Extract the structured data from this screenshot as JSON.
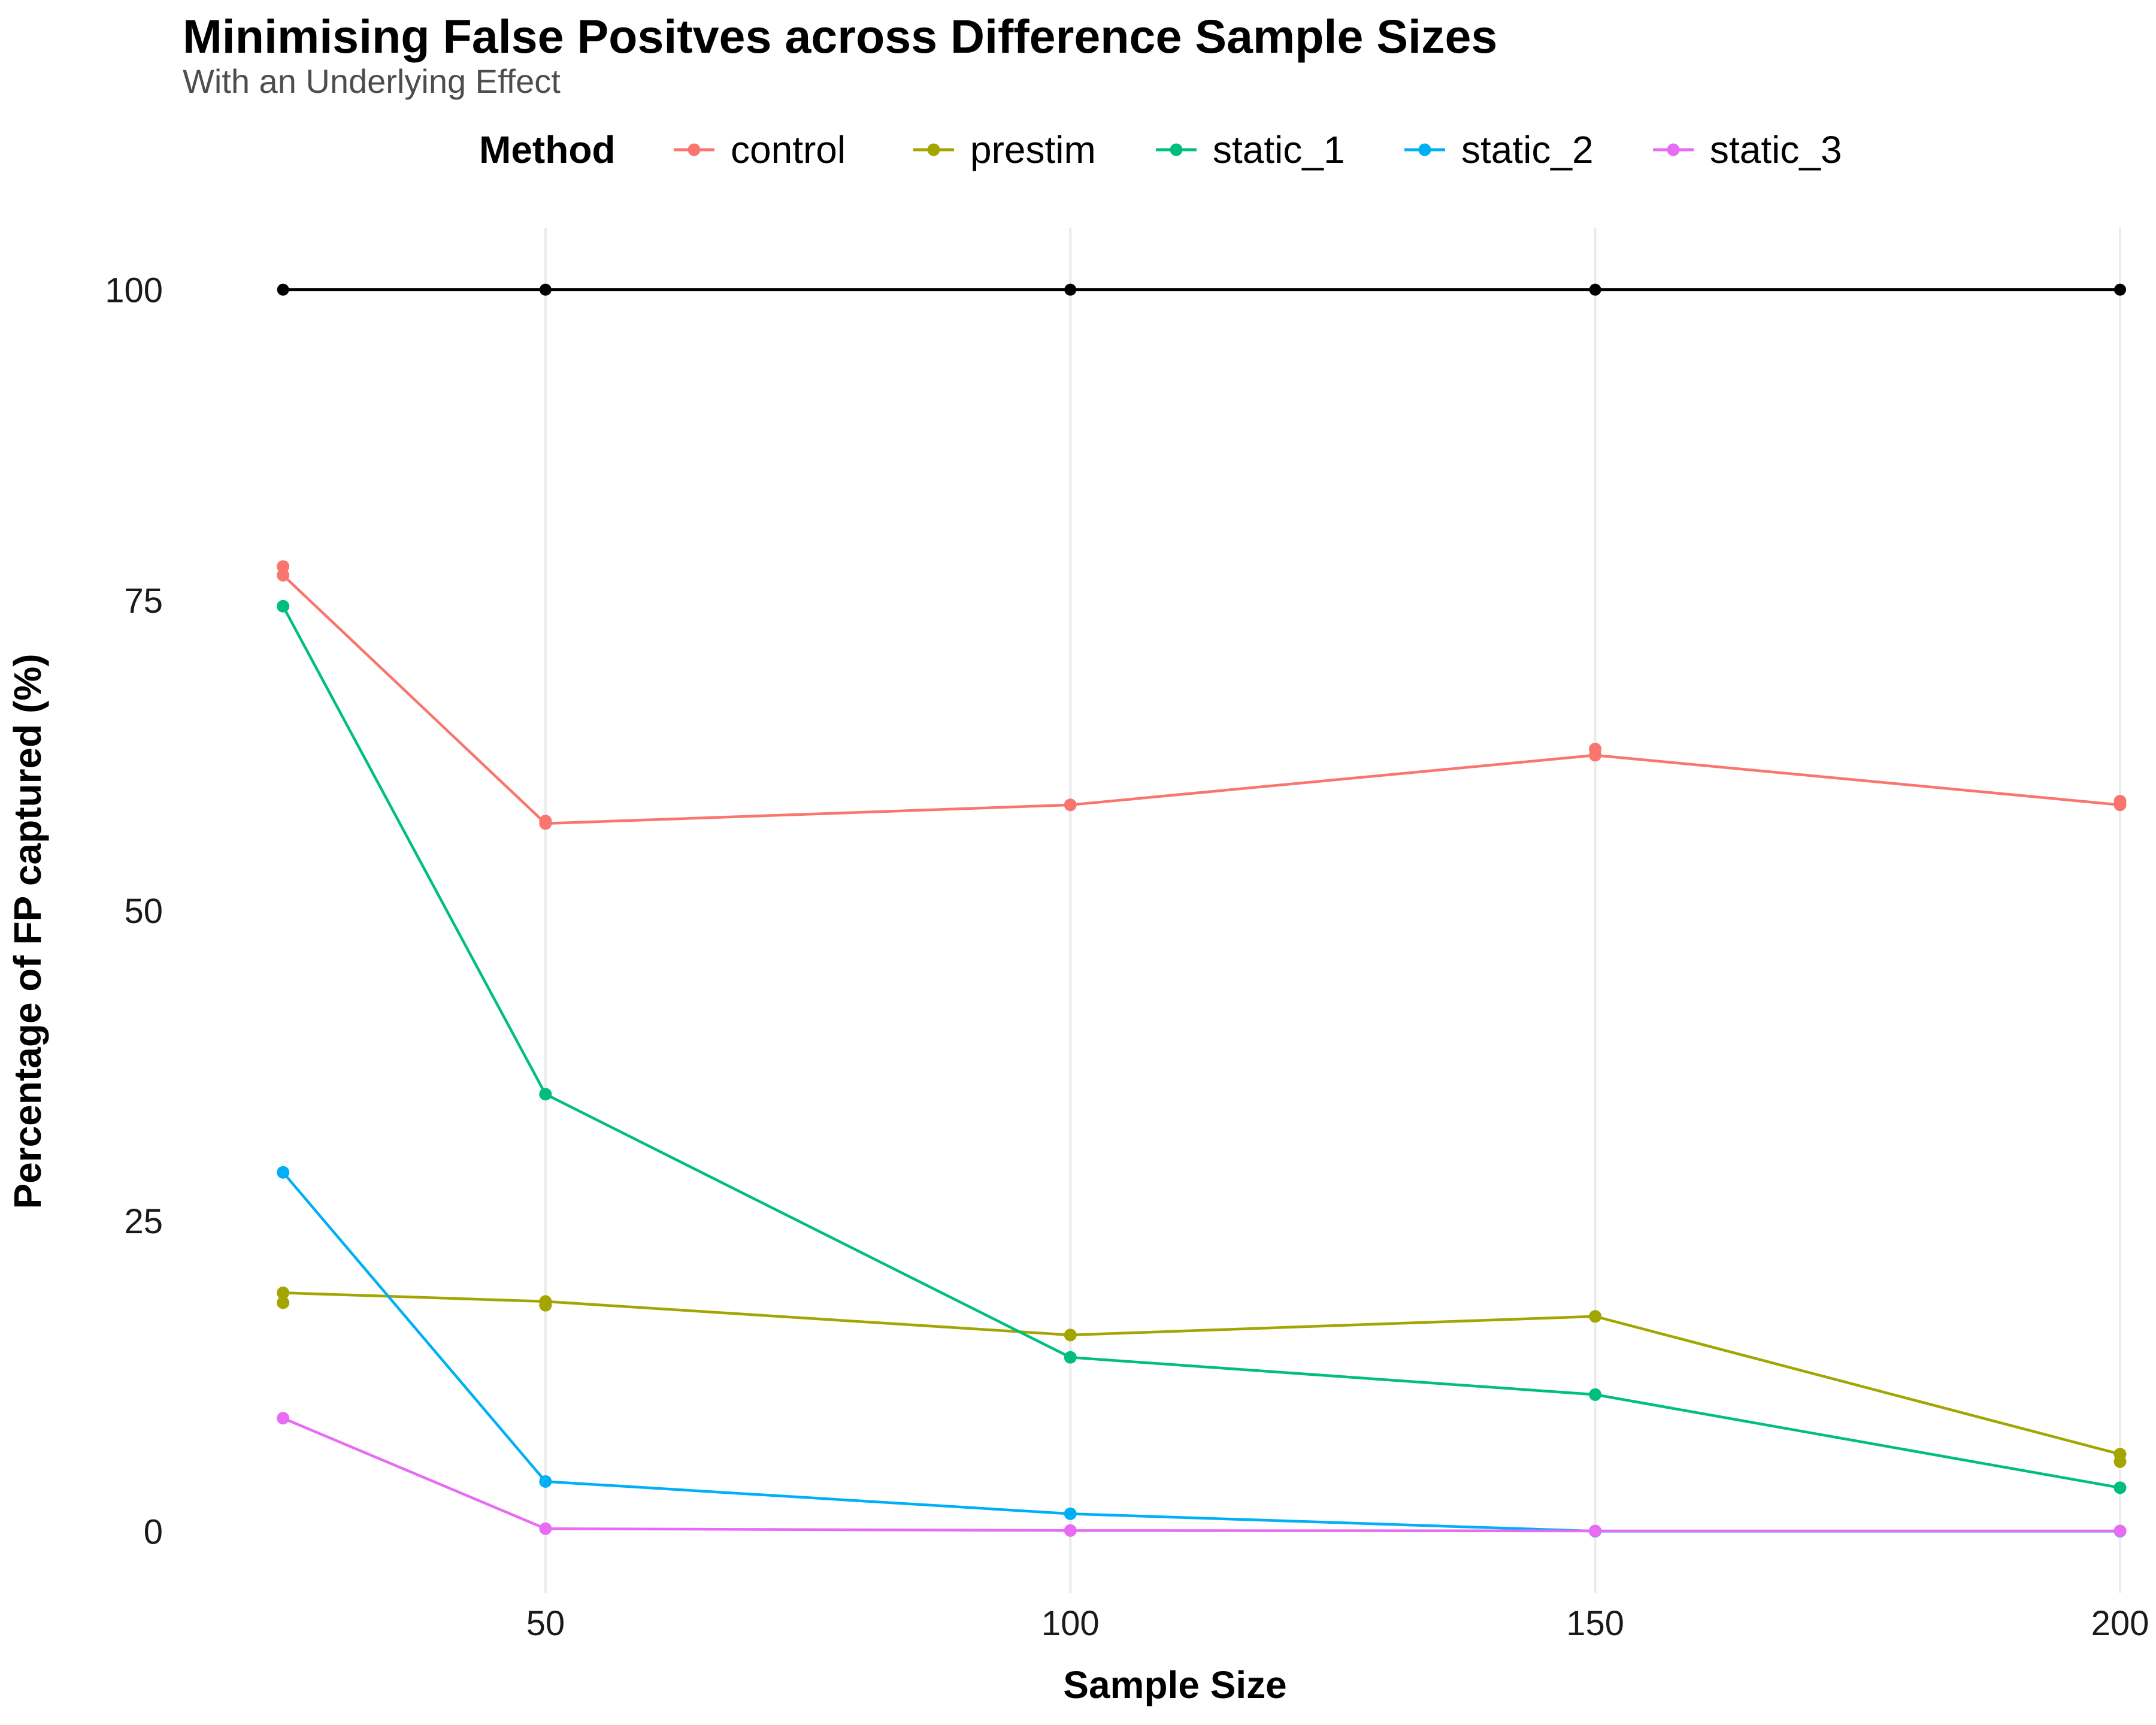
{
  "chart_data": {
    "type": "line",
    "title": "Minimising False Positves across Difference Sample Sizes",
    "subtitle": "With an Underlying Effect",
    "xlabel": "Sample Size",
    "ylabel": "Percentage of FP captured (%)",
    "legend": {
      "title": "Method",
      "position": "top"
    },
    "xlim": [
      20,
      200
    ],
    "ylim": [
      -5,
      105
    ],
    "xticks": [
      50,
      100,
      150,
      200
    ],
    "yticks": [
      0,
      25,
      50,
      75,
      100
    ],
    "x": [
      25,
      50,
      100,
      150,
      200
    ],
    "grid": {
      "vertical_major": true,
      "horizontal": false
    },
    "reference_line": {
      "color": "#000000",
      "values": [
        100,
        100,
        100,
        100,
        100
      ]
    },
    "series": [
      {
        "name": "control",
        "color": "#F8766D",
        "values": [
          77,
          57,
          58.5,
          62.5,
          58.5
        ],
        "extra_points": [
          [
            25,
            77.7
          ],
          [
            50,
            57.2
          ],
          [
            150,
            63
          ],
          [
            200,
            58.8
          ]
        ]
      },
      {
        "name": "prestim",
        "color": "#A3A500",
        "values": [
          19.2,
          18.5,
          15.8,
          17.3,
          6.2
        ],
        "extra_points": [
          [
            25,
            18.4
          ],
          [
            50,
            18.2
          ],
          [
            200,
            5.6
          ]
        ]
      },
      {
        "name": "static_1",
        "color": "#00BF7D",
        "values": [
          74.5,
          35.2,
          14,
          11,
          3.5
        ],
        "extra_points": []
      },
      {
        "name": "static_2",
        "color": "#00B0F6",
        "values": [
          28.9,
          4,
          1.4,
          0,
          0
        ],
        "extra_points": []
      },
      {
        "name": "static_3",
        "color": "#E76BF3",
        "values": [
          9.1,
          0.2,
          0.05,
          0.02,
          0.02
        ],
        "extra_points": []
      }
    ]
  }
}
